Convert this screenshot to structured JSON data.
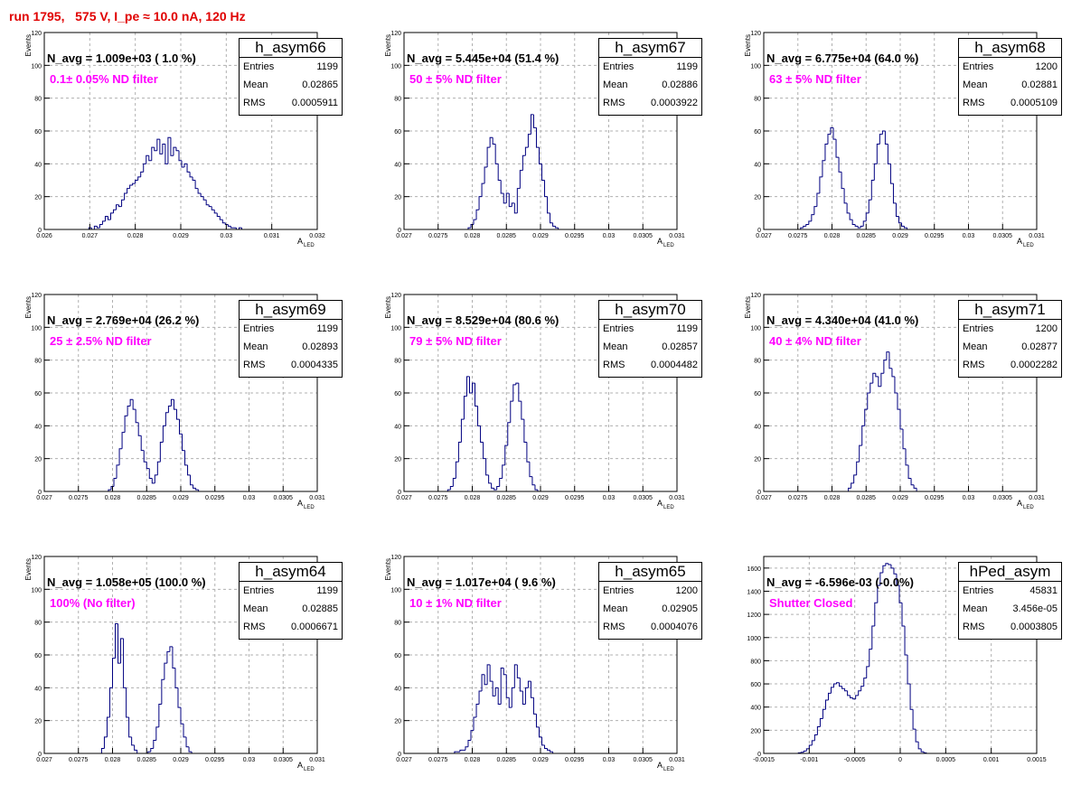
{
  "title": "run 1795,   575 V, I_pe ≈ 10.0 nA, 120 Hz",
  "colors": {
    "title": "#e00000",
    "hist": "#000080",
    "filter_text": "#ff00ff",
    "grid": "#b0b0b0"
  },
  "chart_data": [
    {
      "type": "bar",
      "hist_name": "h_asym66",
      "stats": {
        "entries_label": "Entries",
        "entries": "1199",
        "mean_label": "Mean",
        "mean": "0.02865",
        "rms_label": "RMS",
        "rms": "0.0005911"
      },
      "navg": "N_avg = 1.009e+03 ( 1.0 %)",
      "filter": "0.1± 0.05% ND filter",
      "xlabel": "A",
      "xlabel_sub": "LED",
      "ylabel": "Events",
      "xlim": [
        0.026,
        0.032
      ],
      "ylim": [
        0,
        120
      ],
      "xticks": [
        0.026,
        0.027,
        0.028,
        0.029,
        0.03,
        0.031,
        0.032
      ],
      "xtick_labels": [
        "0.026",
        "0.027",
        "0.028",
        "0.029",
        "0.03",
        "0.031",
        "0.032"
      ],
      "yticks": [
        0,
        20,
        40,
        60,
        80,
        100,
        120
      ],
      "ytick_labels": [
        "0",
        "20",
        "40",
        "60",
        "80",
        "100",
        "120"
      ],
      "bin_start": 0.0268,
      "bin_width": 6e-05,
      "values": [
        0,
        0,
        0,
        1,
        0,
        2,
        1,
        3,
        5,
        8,
        6,
        10,
        12,
        15,
        14,
        18,
        22,
        25,
        27,
        28,
        30,
        32,
        35,
        40,
        45,
        42,
        50,
        48,
        55,
        46,
        52,
        40,
        56,
        45,
        50,
        48,
        42,
        38,
        40,
        35,
        32,
        30,
        25,
        22,
        20,
        18,
        15,
        14,
        12,
        10,
        8,
        6,
        4,
        3,
        2,
        1,
        1,
        0,
        1,
        0
      ]
    },
    {
      "type": "bar",
      "hist_name": "h_asym67",
      "stats": {
        "entries_label": "Entries",
        "entries": "1199",
        "mean_label": "Mean",
        "mean": "0.02886",
        "rms_label": "RMS",
        "rms": "0.0003922"
      },
      "navg": "N_avg = 5.445e+04 (51.4 %)",
      "filter": "50 ± 5% ND filter",
      "xlabel": "A",
      "xlabel_sub": "LED",
      "ylabel": "Events",
      "xlim": [
        0.027,
        0.031
      ],
      "ylim": [
        0,
        120
      ],
      "xticks": [
        0.027,
        0.0275,
        0.028,
        0.0285,
        0.029,
        0.0295,
        0.03,
        0.0305,
        0.031
      ],
      "xtick_labels": [
        "0.027",
        "0.0275",
        "0.028",
        "0.0285",
        "0.029",
        "0.0295",
        "0.03",
        "0.0305",
        "0.031"
      ],
      "yticks": [
        0,
        20,
        40,
        60,
        80,
        100,
        120
      ],
      "ytick_labels": [
        "0",
        "20",
        "40",
        "60",
        "80",
        "100",
        "120"
      ],
      "bin_start": 0.0279,
      "bin_width": 4e-05,
      "values": [
        0,
        1,
        3,
        6,
        12,
        20,
        28,
        38,
        50,
        56,
        52,
        40,
        30,
        22,
        16,
        22,
        14,
        16,
        10,
        25,
        36,
        45,
        50,
        58,
        70,
        62,
        50,
        40,
        30,
        20,
        10,
        4,
        2,
        1,
        0
      ]
    },
    {
      "type": "bar",
      "hist_name": "h_asym68",
      "stats": {
        "entries_label": "Entries",
        "entries": "1200",
        "mean_label": "Mean",
        "mean": "0.02881",
        "rms_label": "RMS",
        "rms": "0.0005109"
      },
      "navg": "N_avg = 6.775e+04 (64.0 %)",
      "filter": "63 ± 5% ND filter",
      "xlabel": "A",
      "xlabel_sub": "LED",
      "ylabel": "Events",
      "xlim": [
        0.027,
        0.031
      ],
      "ylim": [
        0,
        120
      ],
      "xticks": [
        0.027,
        0.0275,
        0.028,
        0.0285,
        0.029,
        0.0295,
        0.03,
        0.0305,
        0.031
      ],
      "xtick_labels": [
        "0.027",
        "0.0275",
        "0.028",
        "0.0285",
        "0.029",
        "0.0295",
        "0.03",
        "0.0305",
        "0.031"
      ],
      "yticks": [
        0,
        20,
        40,
        60,
        80,
        100,
        120
      ],
      "ytick_labels": [
        "0",
        "20",
        "40",
        "60",
        "80",
        "100",
        "120"
      ],
      "bin_start": 0.0275,
      "bin_width": 4e-05,
      "values": [
        0,
        1,
        2,
        3,
        5,
        9,
        14,
        22,
        32,
        42,
        52,
        58,
        62,
        55,
        44,
        35,
        25,
        16,
        10,
        6,
        3,
        2,
        1,
        2,
        5,
        10,
        18,
        30,
        40,
        52,
        58,
        60,
        52,
        40,
        28,
        16,
        8,
        4,
        2,
        1,
        0
      ]
    },
    {
      "type": "bar",
      "hist_name": "h_asym69",
      "stats": {
        "entries_label": "Entries",
        "entries": "1199",
        "mean_label": "Mean",
        "mean": "0.02893",
        "rms_label": "RMS",
        "rms": "0.0004335"
      },
      "navg": "N_avg = 2.769e+04 (26.2 %)",
      "filter": "25 ± 2.5% ND filter",
      "xlabel": "A",
      "xlabel_sub": "LED",
      "ylabel": "Events",
      "xlim": [
        0.027,
        0.031
      ],
      "ylim": [
        0,
        120
      ],
      "xticks": [
        0.027,
        0.0275,
        0.028,
        0.0285,
        0.029,
        0.0295,
        0.03,
        0.0305,
        0.031
      ],
      "xtick_labels": [
        "0.027",
        "0.0275",
        "0.028",
        "0.0285",
        "0.029",
        "0.0295",
        "0.03",
        "0.0305",
        "0.031"
      ],
      "yticks": [
        0,
        20,
        40,
        60,
        80,
        100,
        120
      ],
      "ytick_labels": [
        "0",
        "20",
        "40",
        "60",
        "80",
        "100",
        "120"
      ],
      "bin_start": 0.0279,
      "bin_width": 4e-05,
      "values": [
        0,
        1,
        3,
        8,
        16,
        26,
        36,
        46,
        52,
        56,
        50,
        42,
        34,
        25,
        18,
        14,
        8,
        5,
        10,
        18,
        30,
        40,
        48,
        52,
        56,
        50,
        44,
        35,
        25,
        16,
        10,
        4,
        2,
        1,
        0
      ]
    },
    {
      "type": "bar",
      "hist_name": "h_asym70",
      "stats": {
        "entries_label": "Entries",
        "entries": "1199",
        "mean_label": "Mean",
        "mean": "0.02857",
        "rms_label": "RMS",
        "rms": "0.0004482"
      },
      "navg": "N_avg = 8.529e+04 (80.6 %)",
      "filter": "79 ± 5% ND filter",
      "xlabel": "A",
      "xlabel_sub": "LED",
      "ylabel": "Events",
      "xlim": [
        0.027,
        0.031
      ],
      "ylim": [
        0,
        120
      ],
      "xticks": [
        0.027,
        0.0275,
        0.028,
        0.0285,
        0.029,
        0.0295,
        0.03,
        0.0305,
        0.031
      ],
      "xtick_labels": [
        "0.027",
        "0.0275",
        "0.028",
        "0.0285",
        "0.029",
        "0.0295",
        "0.03",
        "0.0305",
        "0.031"
      ],
      "yticks": [
        0,
        20,
        40,
        60,
        80,
        100,
        120
      ],
      "ytick_labels": [
        "0",
        "20",
        "40",
        "60",
        "80",
        "100",
        "120"
      ],
      "bin_start": 0.0276,
      "bin_width": 4e-05,
      "values": [
        0,
        1,
        3,
        8,
        18,
        30,
        44,
        58,
        70,
        60,
        66,
        52,
        40,
        30,
        20,
        10,
        5,
        2,
        1,
        3,
        8,
        16,
        28,
        42,
        55,
        65,
        66,
        55,
        44,
        30,
        18,
        9,
        4,
        1,
        0
      ]
    },
    {
      "type": "bar",
      "hist_name": "h_asym71",
      "stats": {
        "entries_label": "Entries",
        "entries": "1200",
        "mean_label": "Mean",
        "mean": "0.02877",
        "rms_label": "RMS",
        "rms": "0.0002282"
      },
      "navg": "N_avg = 4.340e+04 (41.0 %)",
      "filter": "40 ± 4% ND filter",
      "xlabel": "A",
      "xlabel_sub": "LED",
      "ylabel": "Events",
      "xlim": [
        0.027,
        0.031
      ],
      "ylim": [
        0,
        120
      ],
      "xticks": [
        0.027,
        0.0275,
        0.028,
        0.0285,
        0.029,
        0.0295,
        0.03,
        0.0305,
        0.031
      ],
      "xtick_labels": [
        "0.027",
        "0.0275",
        "0.028",
        "0.0285",
        "0.029",
        "0.0295",
        "0.03",
        "0.0305",
        "0.031"
      ],
      "yticks": [
        0,
        20,
        40,
        60,
        80,
        100,
        120
      ],
      "ytick_labels": [
        "0",
        "20",
        "40",
        "60",
        "80",
        "100",
        "120"
      ],
      "bin_start": 0.0282,
      "bin_width": 4e-05,
      "values": [
        0,
        2,
        5,
        10,
        18,
        28,
        40,
        50,
        60,
        66,
        72,
        70,
        64,
        72,
        80,
        85,
        75,
        70,
        60,
        50,
        38,
        26,
        16,
        8,
        4,
        2,
        0
      ]
    },
    {
      "type": "bar",
      "hist_name": "h_asym64",
      "stats": {
        "entries_label": "Entries",
        "entries": "1199",
        "mean_label": "Mean",
        "mean": "0.02885",
        "rms_label": "RMS",
        "rms": "0.0006671"
      },
      "navg": "N_avg = 1.058e+05 (100.0 %)",
      "filter": "100% (No filter)",
      "xlabel": "A",
      "xlabel_sub": "LED",
      "ylabel": "Events",
      "xlim": [
        0.027,
        0.031
      ],
      "ylim": [
        0,
        120
      ],
      "xticks": [
        0.027,
        0.0275,
        0.028,
        0.0285,
        0.029,
        0.0295,
        0.03,
        0.0305,
        0.031
      ],
      "xtick_labels": [
        "0.027",
        "0.0275",
        "0.028",
        "0.0285",
        "0.029",
        "0.0295",
        "0.03",
        "0.0305",
        "0.031"
      ],
      "yticks": [
        0,
        20,
        40,
        60,
        80,
        100,
        120
      ],
      "ytick_labels": [
        "0",
        "20",
        "40",
        "60",
        "80",
        "100",
        "120"
      ],
      "bin_start": 0.0278,
      "bin_width": 4e-05,
      "values": [
        0,
        3,
        10,
        22,
        40,
        58,
        79,
        55,
        70,
        40,
        22,
        10,
        5,
        2,
        0,
        0,
        0,
        0,
        1,
        3,
        8,
        16,
        30,
        45,
        55,
        62,
        65,
        52,
        40,
        28,
        18,
        10,
        4,
        1,
        0
      ]
    },
    {
      "type": "bar",
      "hist_name": "h_asym65",
      "stats": {
        "entries_label": "Entries",
        "entries": "1200",
        "mean_label": "Mean",
        "mean": "0.02905",
        "rms_label": "RMS",
        "rms": "0.0004076"
      },
      "navg": "N_avg = 1.017e+04 ( 9.6 %)",
      "filter": "10 ± 1% ND filter",
      "xlabel": "A",
      "xlabel_sub": "LED",
      "ylabel": "Events",
      "xlim": [
        0.027,
        0.031
      ],
      "ylim": [
        0,
        120
      ],
      "xticks": [
        0.027,
        0.0275,
        0.028,
        0.0285,
        0.029,
        0.0295,
        0.03,
        0.0305,
        0.031
      ],
      "xtick_labels": [
        "0.027",
        "0.0275",
        "0.028",
        "0.0285",
        "0.029",
        "0.0295",
        "0.03",
        "0.0305",
        "0.031"
      ],
      "yticks": [
        0,
        20,
        40,
        60,
        80,
        100,
        120
      ],
      "ytick_labels": [
        "0",
        "20",
        "40",
        "60",
        "80",
        "100",
        "120"
      ],
      "bin_start": 0.0277,
      "bin_width": 4e-05,
      "values": [
        0,
        1,
        1,
        2,
        2,
        4,
        8,
        14,
        22,
        30,
        38,
        48,
        42,
        54,
        44,
        35,
        40,
        30,
        52,
        48,
        34,
        28,
        40,
        54,
        46,
        38,
        30,
        40,
        44,
        34,
        24,
        16,
        10,
        5,
        3,
        2,
        1,
        0
      ]
    },
    {
      "type": "bar",
      "hist_name": "hPed_asym",
      "stats": {
        "entries_label": "Entries",
        "entries": "45831",
        "mean_label": "Mean",
        "mean": "3.456e-05",
        "rms_label": "RMS",
        "rms": "0.0003805"
      },
      "navg": "N_avg = -6.596e-03 (-0.0%)",
      "filter": "Shutter Closed",
      "xlabel": "",
      "xlabel_sub": "",
      "ylabel": "",
      "xlim": [
        -0.0015,
        0.0015
      ],
      "ylim": [
        0,
        1700
      ],
      "xticks": [
        -0.0015,
        -0.001,
        -0.0005,
        0,
        0.0005,
        0.001,
        0.0015
      ],
      "xtick_labels": [
        "-0.0015",
        "-0.001",
        "-0.0005",
        "0",
        "0.0005",
        "0.001",
        "0.0015"
      ],
      "yticks": [
        0,
        200,
        400,
        600,
        800,
        1000,
        1200,
        1400,
        1600
      ],
      "ytick_labels": [
        "0",
        "200",
        "400",
        "600",
        "800",
        "1000",
        "1200",
        "1400",
        "1600"
      ],
      "bin_start": -0.00115,
      "bin_width": 3e-05,
      "values": [
        0,
        5,
        10,
        20,
        40,
        70,
        110,
        160,
        230,
        300,
        380,
        460,
        520,
        570,
        600,
        610,
        580,
        560,
        540,
        500,
        480,
        470,
        500,
        540,
        580,
        650,
        750,
        900,
        1100,
        1300,
        1450,
        1560,
        1620,
        1640,
        1630,
        1600,
        1550,
        1450,
        1300,
        1100,
        850,
        600,
        380,
        210,
        100,
        40,
        15,
        5,
        0
      ]
    }
  ]
}
